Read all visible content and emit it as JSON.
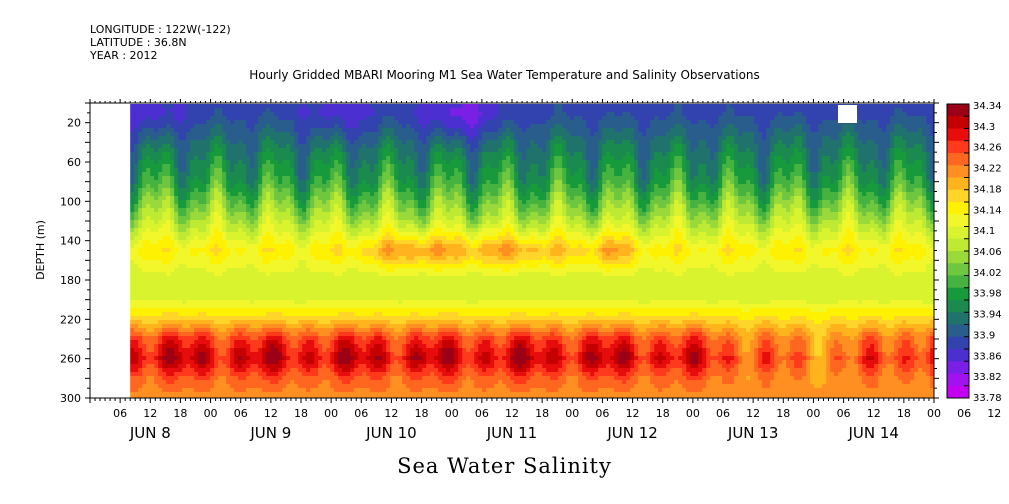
{
  "header": {
    "longitude": "LONGITUDE : 122W(-122)",
    "latitude": "LATITUDE : 36.8N",
    "year": "YEAR : 2012"
  },
  "chart_data": {
    "type": "heatmap",
    "title": "Hourly Gridded MBARI Mooring M1 Sea Water Temperature and Salinity Observations",
    "xlabel": "Sea Water Salinity",
    "ylabel": "DEPTH (m)",
    "x_range_hours": [
      0,
      168
    ],
    "y_range": [
      0,
      300
    ],
    "y_ticks": [
      20,
      60,
      100,
      140,
      180,
      220,
      260,
      300
    ],
    "x_hour_ticks": [
      "06",
      "12",
      "18",
      "00",
      "06",
      "12",
      "18",
      "00",
      "06",
      "12",
      "18",
      "00",
      "06",
      "12",
      "18",
      "00",
      "06",
      "12",
      "18",
      "00",
      "06",
      "12",
      "18",
      "00",
      "06",
      "12",
      "18",
      "00",
      "06",
      "12",
      "18",
      "00"
    ],
    "x_day_labels": [
      "JUN  8",
      "JUN  9",
      "JUN 10",
      "JUN 11",
      "JUN 12",
      "JUN 13",
      "JUN 14"
    ],
    "colorbar_labels": [
      "34.34",
      "34.3",
      "34.26",
      "34.22",
      "34.18",
      "34.14",
      "34.1",
      "34.06",
      "34.02",
      "33.98",
      "33.94",
      "33.9",
      "33.86",
      "33.82",
      "33.78"
    ],
    "colors": [
      "#9b0017",
      "#c40000",
      "#e70d0d",
      "#ff3a1c",
      "#ff6620",
      "#ff8f21",
      "#ffb41e",
      "#ffd52a",
      "#fff200",
      "#f2f72c",
      "#d9f32f",
      "#bfea33",
      "#9ad93a",
      "#6fc63f",
      "#46b23f",
      "#169a3c",
      "#1b8a4f",
      "#20736c",
      "#285d8c",
      "#3343ae",
      "#4b2fd0",
      "#7a20e6",
      "#a212ee",
      "#c300f2"
    ],
    "data_start_hour": 8,
    "data_end_hour": 168,
    "approx_profile": {
      "depth": [
        10,
        40,
        80,
        120,
        150,
        180,
        200,
        220,
        240,
        260,
        280,
        300
      ],
      "salinity": [
        33.89,
        33.93,
        33.98,
        34.07,
        34.14,
        34.09,
        34.1,
        34.17,
        34.26,
        34.3,
        34.24,
        34.21
      ]
    }
  }
}
